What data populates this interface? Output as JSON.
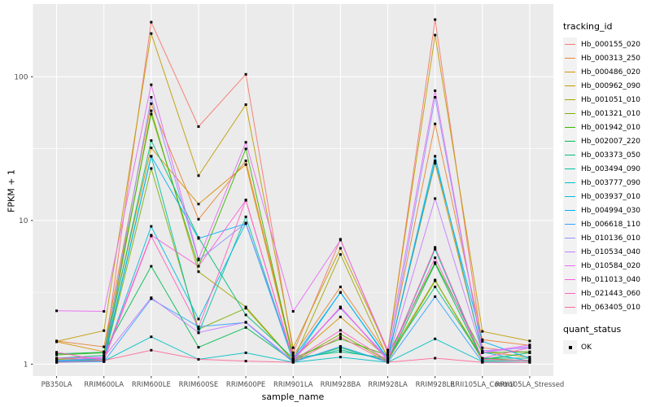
{
  "chart_data": {
    "type": "line",
    "title": "",
    "xlabel": "sample_name",
    "ylabel": "FPKM + 1",
    "y_scale": "log10",
    "y_ticks": [
      1,
      10,
      100
    ],
    "y_minor_ticks": [
      3.1623,
      31.623
    ],
    "ylim_log": [
      -0.083,
      2.506
    ],
    "grid": true,
    "panel_bg": "#EBEBEB",
    "grid_color": "#FFFFFF",
    "marker": "black-square",
    "x_categories": [
      "PB350LA",
      "RRIM600LA",
      "RRIM600LE",
      "RRIM600SE",
      "RRIM600PE",
      "RRIM901LA",
      "RRIM928BA",
      "RRIM928LA",
      "RRIM928LE",
      "RRII105LA_Control",
      "RRII105LA_Stressed"
    ],
    "series": [
      {
        "name": "Hb_000155_020",
        "color": "#F8766D",
        "values": [
          1.05,
          1.1,
          240,
          45,
          104,
          1.2,
          7.4,
          1.2,
          250,
          1.3,
          1.2
        ]
      },
      {
        "name": "Hb_000313_250",
        "color": "#EA8331",
        "values": [
          1.45,
          1.32,
          65,
          10.2,
          26,
          1.15,
          3.45,
          1.15,
          47,
          1.48,
          1.35
        ]
      },
      {
        "name": "Hb_000486_020",
        "color": "#D89000",
        "values": [
          1.43,
          1.22,
          32,
          13,
          24.5,
          1.1,
          2.13,
          1.1,
          25,
          1.22,
          1.12
        ]
      },
      {
        "name": "Hb_000962_090",
        "color": "#C09B00",
        "values": [
          1.44,
          1.71,
          200,
          20.5,
          64,
          1.3,
          6.4,
          1.25,
          195,
          1.69,
          1.45
        ]
      },
      {
        "name": "Hb_001051_010",
        "color": "#A3A500",
        "values": [
          1.1,
          1.06,
          58,
          4.4,
          2.5,
          1.06,
          5.8,
          1.1,
          3.85,
          1.06,
          1.06
        ]
      },
      {
        "name": "Hb_001321_010",
        "color": "#7CAE00",
        "values": [
          1.08,
          1.05,
          23,
          1.75,
          2.45,
          1.05,
          1.62,
          1.05,
          3.8,
          1.1,
          1.05
        ]
      },
      {
        "name": "Hb_001942_010",
        "color": "#39B600",
        "values": [
          1.16,
          1.2,
          55,
          4.8,
          31.5,
          1.1,
          1.5,
          1.15,
          5.1,
          1.2,
          1.22
        ]
      },
      {
        "name": "Hb_002007_220",
        "color": "#00BB4E",
        "values": [
          1.18,
          1.21,
          4.8,
          1.31,
          1.8,
          1.05,
          1.3,
          1.05,
          5.0,
          1.08,
          1.2
        ]
      },
      {
        "name": "Hb_003373_050",
        "color": "#00BF7D",
        "values": [
          1.1,
          1.15,
          36,
          7.6,
          2.2,
          1.1,
          1.22,
          1.1,
          3.45,
          1.1,
          1.1
        ]
      },
      {
        "name": "Hb_003494_090",
        "color": "#00C1A3",
        "values": [
          1.06,
          1.1,
          28,
          1.65,
          10.6,
          1.06,
          1.26,
          1.06,
          6.3,
          1.06,
          1.06
        ]
      },
      {
        "name": "Hb_003777_090",
        "color": "#00BFC4",
        "values": [
          1.03,
          1.05,
          1.55,
          1.08,
          1.2,
          1.03,
          1.12,
          1.03,
          1.5,
          1.04,
          1.03
        ]
      },
      {
        "name": "Hb_003937_010",
        "color": "#00BAE0",
        "values": [
          1.05,
          1.08,
          9.1,
          2.06,
          9.6,
          1.05,
          3.16,
          1.08,
          28,
          1.21,
          1.05
        ]
      },
      {
        "name": "Hb_004994_030",
        "color": "#00B0F6",
        "values": [
          1.04,
          1.06,
          28,
          7.5,
          9.5,
          1.1,
          3.15,
          1.1,
          26,
          1.44,
          1.1
        ]
      },
      {
        "name": "Hb_006618_110",
        "color": "#35A2FF",
        "values": [
          1.03,
          1.04,
          2.85,
          1.82,
          1.95,
          1.03,
          1.33,
          1.03,
          2.95,
          1.03,
          1.03
        ]
      },
      {
        "name": "Hb_010136_010",
        "color": "#9590FF",
        "values": [
          1.06,
          1.1,
          72,
          5.3,
          9.6,
          1.1,
          2.45,
          1.1,
          72,
          1.24,
          1.3
        ]
      },
      {
        "name": "Hb_010534_040",
        "color": "#C77CFF",
        "values": [
          1.1,
          1.12,
          2.9,
          1.66,
          1.96,
          1.06,
          2.5,
          1.06,
          14.2,
          1.2,
          1.33
        ]
      },
      {
        "name": "Hb_010584_020",
        "color": "#E76BF3",
        "values": [
          2.35,
          2.33,
          88,
          5.4,
          35,
          2.33,
          7.3,
          1.25,
          80,
          1.21,
          1.36
        ]
      },
      {
        "name": "Hb_011013_040",
        "color": "#FA62DB",
        "values": [
          1.1,
          1.1,
          7.9,
          4.8,
          13.8,
          1.08,
          2.5,
          1.08,
          5.5,
          1.1,
          1.3
        ]
      },
      {
        "name": "Hb_021443_060",
        "color": "#FF62BC",
        "values": [
          1.21,
          1.06,
          7.8,
          1.8,
          13.9,
          1.06,
          1.72,
          1.06,
          6.5,
          1.08,
          1.06
        ]
      },
      {
        "name": "Hb_063405_010",
        "color": "#FF6A98",
        "values": [
          1.03,
          1.06,
          1.25,
          1.08,
          1.05,
          1.03,
          1.55,
          1.03,
          1.1,
          1.03,
          1.03
        ]
      }
    ]
  },
  "legend": {
    "tracking_title": "tracking_id",
    "quant_title": "quant_status",
    "quant_items": [
      {
        "label": "OK",
        "marker_color": "#000000"
      }
    ]
  },
  "text_colors": {
    "tick_label": "#4D4D4D",
    "axis_title": "#000000"
  }
}
